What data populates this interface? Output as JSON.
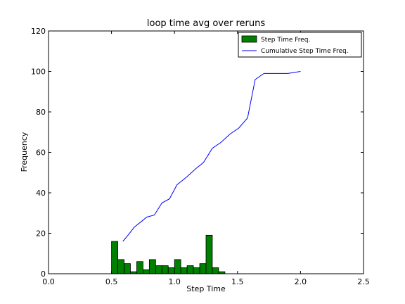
{
  "chart_data": {
    "type": "bar",
    "title": "loop time avg over reruns",
    "xlabel": "Step Time",
    "ylabel": "Frequency",
    "xlim": [
      0.0,
      2.5
    ],
    "ylim": [
      0,
      120
    ],
    "xticks": [
      "0.0",
      "0.5",
      "1.0",
      "1.5",
      "2.0",
      "2.5"
    ],
    "yticks": [
      "0",
      "20",
      "40",
      "60",
      "80",
      "100",
      "120"
    ],
    "grid": false,
    "legend_position": "top-right",
    "colors": {
      "bar_fill": "#008000",
      "bar_edge": "#000000",
      "line": "#0000ff"
    },
    "series": [
      {
        "name": "Step Time Freq.",
        "kind": "bar",
        "bin_width": 0.05,
        "bins": [
          {
            "x": 0.5,
            "value": 16
          },
          {
            "x": 0.55,
            "value": 7
          },
          {
            "x": 0.6,
            "value": 5
          },
          {
            "x": 0.65,
            "value": 1
          },
          {
            "x": 0.7,
            "value": 6
          },
          {
            "x": 0.75,
            "value": 2
          },
          {
            "x": 0.8,
            "value": 7
          },
          {
            "x": 0.85,
            "value": 4
          },
          {
            "x": 0.9,
            "value": 4
          },
          {
            "x": 0.95,
            "value": 3
          },
          {
            "x": 1.0,
            "value": 7
          },
          {
            "x": 1.05,
            "value": 3
          },
          {
            "x": 1.1,
            "value": 4
          },
          {
            "x": 1.15,
            "value": 3
          },
          {
            "x": 1.2,
            "value": 5
          },
          {
            "x": 1.25,
            "value": 19
          },
          {
            "x": 1.3,
            "value": 3
          },
          {
            "x": 1.35,
            "value": 1
          }
        ]
      },
      {
        "name": "Cumulative Step Time Freq.",
        "kind": "line",
        "points": [
          [
            0.59,
            16
          ],
          [
            0.63,
            19
          ],
          [
            0.68,
            23
          ],
          [
            0.74,
            26
          ],
          [
            0.78,
            28
          ],
          [
            0.84,
            29
          ],
          [
            0.9,
            35
          ],
          [
            0.96,
            37
          ],
          [
            1.02,
            44
          ],
          [
            1.1,
            48
          ],
          [
            1.17,
            52
          ],
          [
            1.23,
            55
          ],
          [
            1.3,
            62
          ],
          [
            1.37,
            65
          ],
          [
            1.44,
            69
          ],
          [
            1.51,
            72
          ],
          [
            1.58,
            77
          ],
          [
            1.64,
            96
          ],
          [
            1.71,
            99
          ],
          [
            1.8,
            99
          ],
          [
            1.9,
            99
          ],
          [
            2.0,
            100
          ]
        ]
      }
    ]
  }
}
